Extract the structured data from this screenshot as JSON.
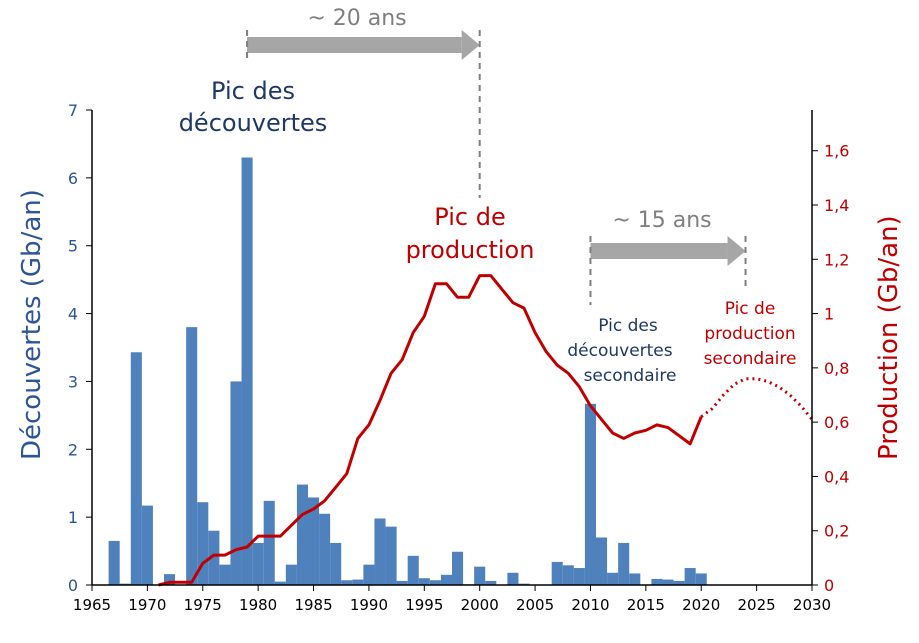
{
  "chart_data": {
    "type": "bar+line",
    "x_axis": {
      "ticks": [
        "1965",
        "1970",
        "1975",
        "1980",
        "1985",
        "1990",
        "1995",
        "2000",
        "2005",
        "2010",
        "2015",
        "2020",
        "2025",
        "2030"
      ],
      "range": [
        1965,
        2030
      ]
    },
    "y_left": {
      "label": "Découvertes (Gb/an)",
      "range": [
        0,
        7
      ],
      "ticks": [
        "0",
        "1",
        "2",
        "3",
        "4",
        "5",
        "6",
        "7"
      ],
      "color": "#2e5597"
    },
    "y_right": {
      "label": "Production (Gb/an)",
      "range": [
        0,
        1.75
      ],
      "ticks": [
        "0",
        "0,2",
        "0,4",
        "0,6",
        "0,8",
        "1",
        "1,2",
        "1,4",
        "1,6"
      ],
      "color": "#c00000"
    },
    "grid": false,
    "discoveries": {
      "color": "#4f81bd",
      "x": [
        1967,
        1968,
        1969,
        1970,
        1972,
        1974,
        1975,
        1976,
        1977,
        1978,
        1979,
        1980,
        1981,
        1982,
        1983,
        1984,
        1985,
        1986,
        1987,
        1988,
        1989,
        1990,
        1991,
        1992,
        1993,
        1994,
        1995,
        1996,
        1997,
        1998,
        1999,
        2000,
        2001,
        2003,
        2004,
        2007,
        2008,
        2009,
        2010,
        2011,
        2012,
        2013,
        2014,
        2016,
        2017,
        2018,
        2019,
        2020
      ],
      "values": [
        0.65,
        0.02,
        3.43,
        1.17,
        0.16,
        3.8,
        1.22,
        0.8,
        0.3,
        3.0,
        6.3,
        0.62,
        1.24,
        0.05,
        0.3,
        1.48,
        1.29,
        1.05,
        0.62,
        0.07,
        0.08,
        0.3,
        0.98,
        0.86,
        0.06,
        0.43,
        0.1,
        0.07,
        0.15,
        0.49,
        0.01,
        0.27,
        0.06,
        0.18,
        0.02,
        0.34,
        0.29,
        0.25,
        2.67,
        0.7,
        0.18,
        0.62,
        0.17,
        0.09,
        0.08,
        0.06,
        0.25,
        0.17
      ]
    },
    "production": {
      "color": "#c00000",
      "x": [
        1971,
        1972,
        1973,
        1974,
        1975,
        1976,
        1977,
        1978,
        1979,
        1980,
        1981,
        1982,
        1983,
        1984,
        1985,
        1986,
        1987,
        1988,
        1989,
        1990,
        1991,
        1992,
        1993,
        1994,
        1995,
        1996,
        1997,
        1998,
        1999,
        2000,
        2001,
        2002,
        2003,
        2004,
        2005,
        2006,
        2007,
        2008,
        2009,
        2010,
        2011,
        2012,
        2013,
        2014,
        2015,
        2016,
        2017,
        2018,
        2019,
        2020
      ],
      "values": [
        0,
        0.01,
        0.01,
        0.01,
        0.08,
        0.11,
        0.11,
        0.13,
        0.14,
        0.18,
        0.18,
        0.18,
        0.22,
        0.26,
        0.28,
        0.31,
        0.36,
        0.41,
        0.54,
        0.59,
        0.68,
        0.78,
        0.83,
        0.93,
        0.99,
        1.11,
        1.11,
        1.06,
        1.06,
        1.14,
        1.14,
        1.09,
        1.04,
        1.02,
        0.93,
        0.86,
        0.81,
        0.78,
        0.73,
        0.66,
        0.61,
        0.56,
        0.54,
        0.56,
        0.57,
        0.59,
        0.58,
        0.55,
        0.52,
        0.62
      ]
    },
    "production_projection": {
      "style": "dotted",
      "x": [
        2020,
        2021,
        2022,
        2023,
        2024,
        2025,
        2026,
        2027,
        2028,
        2029,
        2030
      ],
      "values": [
        0.62,
        0.65,
        0.7,
        0.74,
        0.76,
        0.76,
        0.75,
        0.73,
        0.7,
        0.66,
        0.61
      ]
    },
    "annotations": {
      "peak_discoveries": [
        "Pic des",
        "découvertes"
      ],
      "peak_production": [
        "Pic de",
        "production"
      ],
      "secondary_discoveries": [
        "Pic des",
        "découvertes",
        "secondaire"
      ],
      "secondary_production": [
        "Pic de",
        "production",
        "secondaire"
      ],
      "arrow1": {
        "label": "~ 20 ans",
        "from": 1979,
        "to": 2000
      },
      "arrow2": {
        "label": "~ 15 ans",
        "from": 2010,
        "to": 2024
      }
    }
  }
}
